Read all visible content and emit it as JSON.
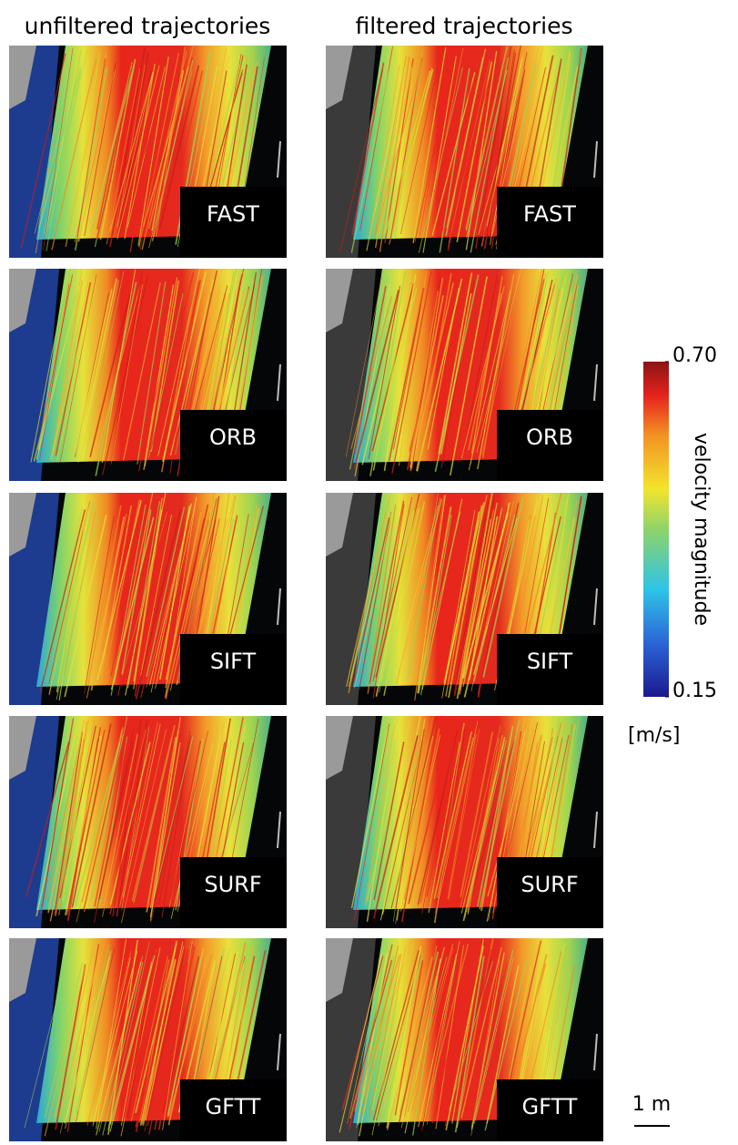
{
  "columns": [
    {
      "title": "unfiltered trajectories"
    },
    {
      "title": "filtered trajectories"
    }
  ],
  "rows": [
    {
      "label": "FAST"
    },
    {
      "label": "ORB"
    },
    {
      "label": "SIFT"
    },
    {
      "label": "SURF"
    },
    {
      "label": "GFTT"
    }
  ],
  "colorbar": {
    "title": "velocity magnitude",
    "unit": "[m/s]",
    "lim": [
      0.15,
      0.7
    ],
    "ticks": [
      {
        "value": 0.7,
        "label": "0.70"
      },
      {
        "value": 0.15,
        "label": "0.15"
      }
    ]
  },
  "scale_bar": {
    "label": "1 m"
  }
}
